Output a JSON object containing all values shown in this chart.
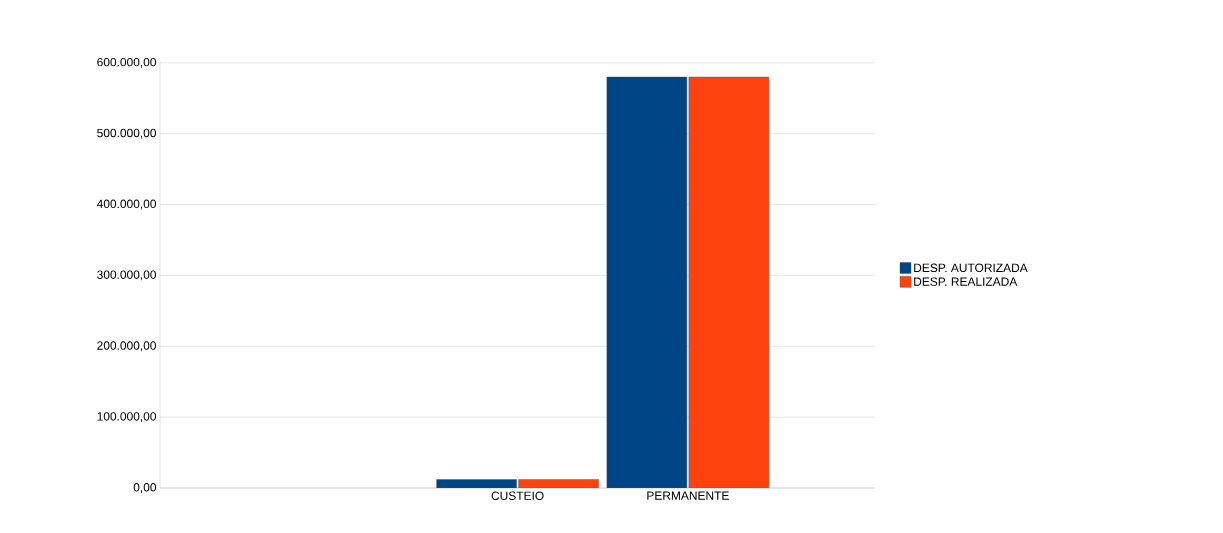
{
  "chart_data": {
    "type": "bar",
    "categories": [
      null,
      "CUSTEIO",
      "PERMANENTE"
    ],
    "series": [
      {
        "name": "DESP. AUTORIZADA",
        "color": "#004586",
        "values": [
          null,
          12000,
          580000
        ]
      },
      {
        "name": "DESP. REALIZADA",
        "color": "#ff420e",
        "values": [
          null,
          12000,
          580000
        ]
      }
    ],
    "ylim": [
      0,
      600000
    ],
    "yticks": [
      {
        "value": 0,
        "label": "0,00"
      },
      {
        "value": 100000,
        "label": "100.000,00"
      },
      {
        "value": 200000,
        "label": "200.000,00"
      },
      {
        "value": 300000,
        "label": "300.000,00"
      },
      {
        "value": 400000,
        "label": "400.000,00"
      },
      {
        "value": 500000,
        "label": "500.000,00"
      },
      {
        "value": 600000,
        "label": "600.000,00"
      }
    ],
    "grid": "y",
    "legend": "right"
  }
}
